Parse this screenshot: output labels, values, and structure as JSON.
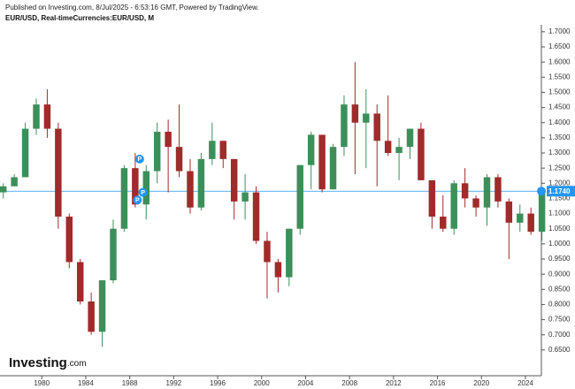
{
  "header": {
    "published": "Published on Investing.com, 8/Jul/2025 - 6:53:16 GMT, Powered by TradingView.",
    "symbol": "EUR/USD, Real-timeCurrencies:EUR/USD, M"
  },
  "logo": {
    "brand": "Investing",
    "suffix": ".com"
  },
  "chart_data": {
    "type": "candlestick",
    "x": [
      1976,
      1977,
      1978,
      1979,
      1980,
      1981,
      1982,
      1983,
      1984,
      1985,
      1986,
      1987,
      1988,
      1989,
      1990,
      1991,
      1992,
      1993,
      1994,
      1995,
      1996,
      1997,
      1998,
      1999,
      2000,
      2001,
      2002,
      2003,
      2004,
      2005,
      2006,
      2007,
      2008,
      2009,
      2010,
      2011,
      2012,
      2013,
      2014,
      2015,
      2016,
      2017,
      2018,
      2019,
      2020,
      2021,
      2022,
      2023,
      2024,
      2025
    ],
    "open": [
      1.17,
      1.19,
      1.22,
      1.38,
      1.46,
      1.38,
      1.09,
      0.94,
      0.81,
      0.71,
      0.88,
      1.05,
      1.25,
      1.13,
      1.24,
      1.37,
      1.32,
      1.24,
      1.12,
      1.28,
      1.34,
      1.28,
      1.14,
      1.17,
      1.01,
      0.94,
      0.89,
      1.05,
      1.26,
      1.36,
      1.18,
      1.32,
      1.46,
      1.4,
      1.43,
      1.34,
      1.3,
      1.32,
      1.38,
      1.21,
      1.09,
      1.05,
      1.2,
      1.15,
      1.12,
      1.22,
      1.14,
      1.07,
      1.1,
      1.04
    ],
    "high": [
      1.2,
      1.23,
      1.4,
      1.48,
      1.51,
      1.4,
      1.1,
      0.95,
      0.84,
      0.88,
      1.08,
      1.26,
      1.3,
      1.26,
      1.4,
      1.41,
      1.46,
      1.28,
      1.3,
      1.4,
      1.34,
      1.28,
      1.23,
      1.19,
      1.04,
      0.95,
      1.05,
      1.26,
      1.37,
      1.36,
      1.33,
      1.49,
      1.6,
      1.51,
      1.46,
      1.49,
      1.35,
      1.38,
      1.4,
      1.21,
      1.16,
      1.21,
      1.25,
      1.16,
      1.23,
      1.23,
      1.15,
      1.13,
      1.12,
      1.18
    ],
    "low": [
      1.15,
      1.19,
      1.22,
      1.36,
      1.35,
      1.05,
      0.92,
      0.8,
      0.7,
      0.66,
      0.87,
      1.04,
      1.12,
      1.08,
      1.2,
      1.17,
      1.22,
      1.1,
      1.11,
      1.26,
      1.25,
      1.08,
      1.08,
      1.0,
      0.82,
      0.84,
      0.86,
      1.03,
      1.18,
      1.17,
      1.18,
      1.29,
      1.23,
      1.25,
      1.19,
      1.29,
      1.21,
      1.28,
      1.21,
      1.05,
      1.04,
      1.03,
      1.12,
      1.09,
      1.06,
      1.12,
      0.95,
      1.04,
      1.03,
      1.01
    ],
    "close": [
      1.19,
      1.22,
      1.38,
      1.46,
      1.38,
      1.09,
      0.94,
      0.81,
      0.71,
      0.88,
      1.05,
      1.25,
      1.13,
      1.24,
      1.37,
      1.32,
      1.24,
      1.12,
      1.28,
      1.34,
      1.28,
      1.14,
      1.17,
      1.01,
      0.94,
      0.89,
      1.05,
      1.26,
      1.36,
      1.18,
      1.32,
      1.46,
      1.4,
      1.43,
      1.34,
      1.3,
      1.32,
      1.38,
      1.21,
      1.09,
      1.05,
      1.2,
      1.15,
      1.12,
      1.22,
      1.14,
      1.07,
      1.1,
      1.04,
      1.17
    ],
    "up_color": "#3d8f5a",
    "down_color": "#a12a2a",
    "xlim": [
      1976.2,
      2025.45
    ],
    "ylim": [
      0.565,
      1.723
    ],
    "xticks": [
      1980,
      1984,
      1988,
      1992,
      1996,
      2000,
      2004,
      2008,
      2012,
      2016,
      2020,
      2024
    ],
    "yticks": [
      {
        "value": 0.65,
        "label": "0.6500"
      },
      {
        "value": 0.7,
        "label": "0.7000"
      },
      {
        "value": 0.75,
        "label": "0.7500"
      },
      {
        "value": 0.8,
        "label": "0.8000"
      },
      {
        "value": 0.85,
        "label": "0.8500"
      },
      {
        "value": 0.9,
        "label": "0.9000"
      },
      {
        "value": 0.95,
        "label": "0.9500"
      },
      {
        "value": 1.0,
        "label": "1.0000"
      },
      {
        "value": 1.05,
        "label": "1.0500"
      },
      {
        "value": 1.1,
        "label": "1.1000"
      },
      {
        "value": 1.15,
        "label": "1.1500"
      },
      {
        "value": 1.2,
        "label": "1.2000"
      },
      {
        "value": 1.25,
        "label": "1.2500"
      },
      {
        "value": 1.3,
        "label": "1.3000"
      },
      {
        "value": 1.35,
        "label": "1.3500"
      },
      {
        "value": 1.4,
        "label": "1.4000"
      },
      {
        "value": 1.45,
        "label": "1.4500"
      },
      {
        "value": 1.5,
        "label": "1.5000"
      },
      {
        "value": 1.55,
        "label": "1.5500"
      },
      {
        "value": 1.6,
        "label": "1.6000"
      },
      {
        "value": 1.65,
        "label": "1.6500"
      },
      {
        "value": 1.7,
        "label": "1.7000"
      }
    ],
    "last_price": {
      "value": 1.174,
      "label": "1.1740"
    },
    "price_line_color": "#2196f3",
    "markers": [
      {
        "x": 1988.9,
        "y": 1.28,
        "label": "P"
      },
      {
        "x": 1989.2,
        "y": 1.17,
        "label": "P"
      },
      {
        "x": 1988.7,
        "y": 1.145,
        "label": "P"
      }
    ]
  }
}
